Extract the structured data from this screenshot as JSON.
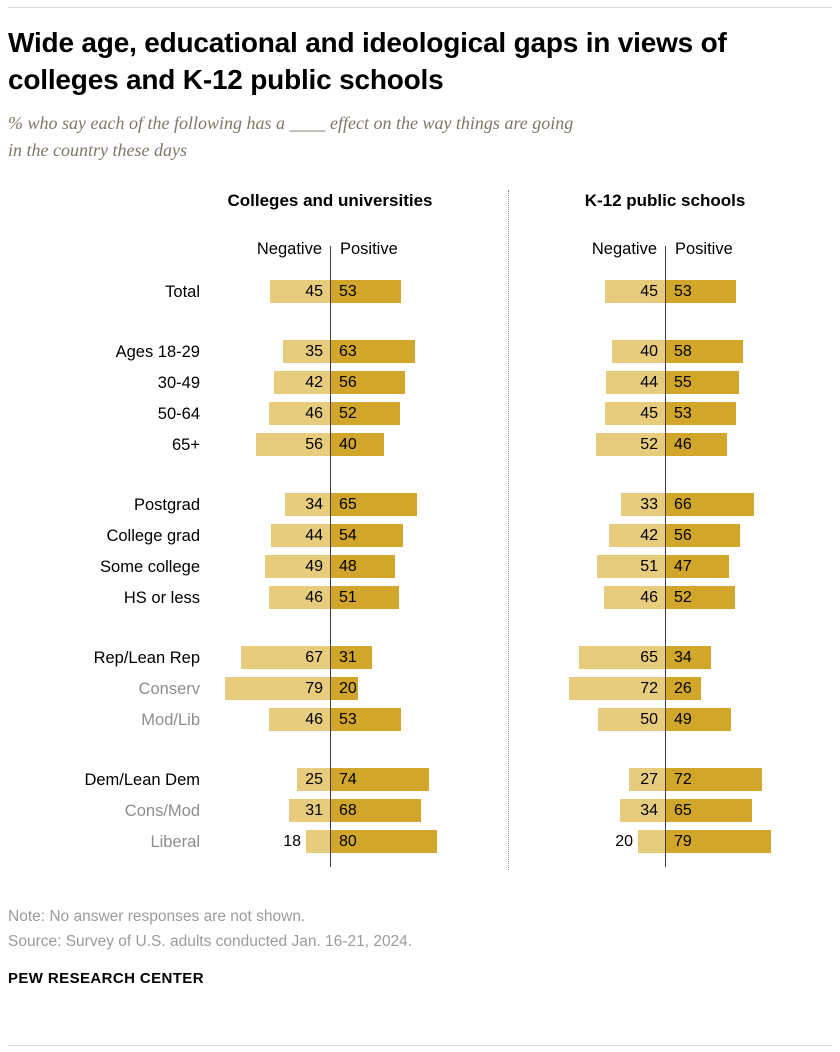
{
  "header": {
    "title_lines": [
      "Wide age, educational and ideological gaps in views of",
      "colleges and K-12 public schools"
    ],
    "subtitle_lines": [
      "% who say each of the following has a ____ effect on the way things are going",
      "in the country these days"
    ]
  },
  "chart_data": {
    "type": "bar",
    "layout": "diverging-paired-panels",
    "unit": "%",
    "value_range": [
      0,
      100
    ],
    "colors": {
      "negative": "#E8CC7D",
      "positive": "#D2A62B"
    },
    "panels": [
      {
        "key": "colleges",
        "title": "Colleges and universities"
      },
      {
        "key": "k12",
        "title": "K-12 public schools"
      }
    ],
    "column_headers": {
      "negative": "Negative",
      "positive": "Positive"
    },
    "groups": [
      {
        "rows": [
          {
            "label": "Total",
            "muted": false,
            "colleges": {
              "negative": 45,
              "positive": 53
            },
            "k12": {
              "negative": 45,
              "positive": 53
            }
          }
        ]
      },
      {
        "rows": [
          {
            "label": "Ages 18-29",
            "muted": false,
            "colleges": {
              "negative": 35,
              "positive": 63
            },
            "k12": {
              "negative": 40,
              "positive": 58
            }
          },
          {
            "label": "30-49",
            "muted": false,
            "colleges": {
              "negative": 42,
              "positive": 56
            },
            "k12": {
              "negative": 44,
              "positive": 55
            }
          },
          {
            "label": "50-64",
            "muted": false,
            "colleges": {
              "negative": 46,
              "positive": 52
            },
            "k12": {
              "negative": 45,
              "positive": 53
            }
          },
          {
            "label": "65+",
            "muted": false,
            "colleges": {
              "negative": 56,
              "positive": 40
            },
            "k12": {
              "negative": 52,
              "positive": 46
            }
          }
        ]
      },
      {
        "rows": [
          {
            "label": "Postgrad",
            "muted": false,
            "colleges": {
              "negative": 34,
              "positive": 65
            },
            "k12": {
              "negative": 33,
              "positive": 66
            }
          },
          {
            "label": "College grad",
            "muted": false,
            "colleges": {
              "negative": 44,
              "positive": 54
            },
            "k12": {
              "negative": 42,
              "positive": 56
            }
          },
          {
            "label": "Some college",
            "muted": false,
            "colleges": {
              "negative": 49,
              "positive": 48
            },
            "k12": {
              "negative": 51,
              "positive": 47
            }
          },
          {
            "label": "HS or less",
            "muted": false,
            "colleges": {
              "negative": 46,
              "positive": 51
            },
            "k12": {
              "negative": 46,
              "positive": 52
            }
          }
        ]
      },
      {
        "rows": [
          {
            "label": "Rep/Lean Rep",
            "muted": false,
            "colleges": {
              "negative": 67,
              "positive": 31
            },
            "k12": {
              "negative": 65,
              "positive": 34
            }
          },
          {
            "label": "Conserv",
            "muted": true,
            "colleges": {
              "negative": 79,
              "positive": 20
            },
            "k12": {
              "negative": 72,
              "positive": 26
            }
          },
          {
            "label": "Mod/Lib",
            "muted": true,
            "colleges": {
              "negative": 46,
              "positive": 53
            },
            "k12": {
              "negative": 50,
              "positive": 49
            }
          }
        ]
      },
      {
        "rows": [
          {
            "label": "Dem/Lean Dem",
            "muted": false,
            "colleges": {
              "negative": 25,
              "positive": 74
            },
            "k12": {
              "negative": 27,
              "positive": 72
            }
          },
          {
            "label": "Cons/Mod",
            "muted": true,
            "colleges": {
              "negative": 31,
              "positive": 68
            },
            "k12": {
              "negative": 34,
              "positive": 65
            }
          },
          {
            "label": "Liberal",
            "muted": true,
            "colleges": {
              "negative": 18,
              "positive": 80
            },
            "k12": {
              "negative": 20,
              "positive": 79
            }
          }
        ]
      }
    ]
  },
  "footer": {
    "note": "Note: No answer responses are not shown.",
    "source": "Source: Survey of U.S. adults conducted Jan. 16-21, 2024.",
    "brand": "PEW RESEARCH CENTER"
  }
}
